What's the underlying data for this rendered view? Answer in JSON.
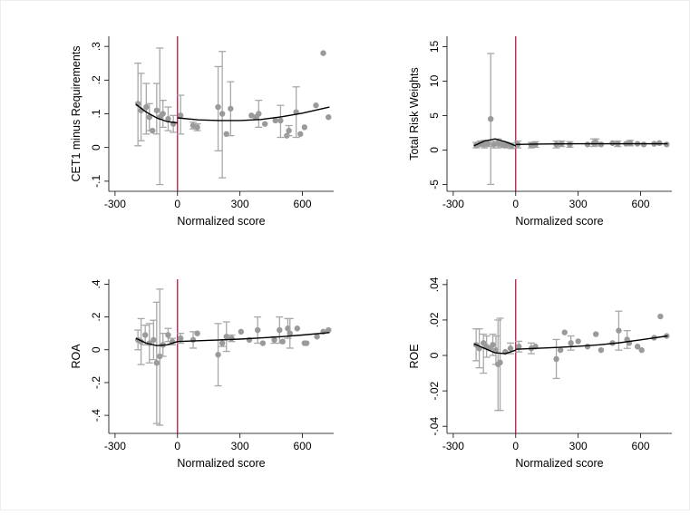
{
  "chart_data": [
    {
      "type": "scatter",
      "xlabel": "Normalized score",
      "ylabel": "CET1 minus Requirements",
      "xticks": [
        -300,
        0,
        300,
        600
      ],
      "xtick_labels": [
        "-300",
        "0",
        "300",
        "600"
      ],
      "yticks": [
        -0.1,
        0,
        0.1,
        0.2,
        0.3
      ],
      "ytick_labels": [
        "-.1",
        "0",
        ".1",
        ".2",
        ".3"
      ],
      "xlim": [
        -330,
        750
      ],
      "ylim": [
        -0.13,
        0.33
      ],
      "threshold": 0,
      "points": [
        {
          "x": -190,
          "y": 0.13,
          "lo": 0.005,
          "hi": 0.25
        },
        {
          "x": -175,
          "y": 0.11,
          "lo": 0.02,
          "hi": 0.22
        },
        {
          "x": -150,
          "y": 0.12,
          "lo": 0.04,
          "hi": 0.19
        },
        {
          "x": -135,
          "y": 0.09,
          "lo": 0.05,
          "hi": 0.13
        },
        {
          "x": -120,
          "y": 0.05
        },
        {
          "x": -100,
          "y": 0.11,
          "lo": 0.04,
          "hi": 0.19
        },
        {
          "x": -85,
          "y": 0.09,
          "lo": -0.11,
          "hi": 0.295
        },
        {
          "x": -70,
          "y": 0.1,
          "lo": 0.06,
          "hi": 0.14
        },
        {
          "x": -45,
          "y": 0.085,
          "lo": 0.05,
          "hi": 0.12
        },
        {
          "x": -20,
          "y": 0.07,
          "lo": 0.045,
          "hi": 0.095
        },
        {
          "x": 15,
          "y": 0.095,
          "lo": 0.04,
          "hi": 0.155
        },
        {
          "x": 75,
          "y": 0.065,
          "lo": 0.055,
          "hi": 0.075
        },
        {
          "x": 95,
          "y": 0.06,
          "lo": 0.05,
          "hi": 0.07
        },
        {
          "x": 195,
          "y": 0.12,
          "lo": -0.01,
          "hi": 0.24
        },
        {
          "x": 215,
          "y": 0.1,
          "lo": -0.09,
          "hi": 0.285
        },
        {
          "x": 235,
          "y": 0.04
        },
        {
          "x": 255,
          "y": 0.115,
          "lo": 0.035,
          "hi": 0.195
        },
        {
          "x": 355,
          "y": 0.095
        },
        {
          "x": 375,
          "y": 0.09
        },
        {
          "x": 390,
          "y": 0.1,
          "lo": 0.06,
          "hi": 0.14
        },
        {
          "x": 420,
          "y": 0.07
        },
        {
          "x": 470,
          "y": 0.08
        },
        {
          "x": 495,
          "y": 0.08,
          "lo": 0.03,
          "hi": 0.125
        },
        {
          "x": 525,
          "y": 0.035
        },
        {
          "x": 535,
          "y": 0.05,
          "lo": 0.035,
          "hi": 0.065
        },
        {
          "x": 570,
          "y": 0.105,
          "lo": 0.03,
          "hi": 0.18
        },
        {
          "x": 590,
          "y": 0.04
        },
        {
          "x": 610,
          "y": 0.06
        },
        {
          "x": 665,
          "y": 0.125
        },
        {
          "x": 700,
          "y": 0.28
        },
        {
          "x": 725,
          "y": 0.09
        }
      ],
      "fit_left": {
        "x": [
          -200,
          -150,
          -100,
          -50,
          0
        ],
        "y": [
          0.128,
          0.105,
          0.088,
          0.077,
          0.073
        ]
      },
      "fit_right": {
        "x": [
          0,
          100,
          200,
          300,
          400,
          500,
          600,
          730
        ],
        "y": [
          0.088,
          0.082,
          0.08,
          0.08,
          0.083,
          0.091,
          0.102,
          0.12
        ]
      }
    },
    {
      "type": "scatter",
      "xlabel": "Normalized score",
      "ylabel": "Total Risk Weights",
      "xticks": [
        -300,
        0,
        300,
        600
      ],
      "xtick_labels": [
        "-300",
        "0",
        "300",
        "600"
      ],
      "yticks": [
        -5,
        0,
        5,
        10,
        15
      ],
      "ytick_labels": [
        "-5",
        "0",
        "5",
        "10",
        "15"
      ],
      "xlim": [
        -330,
        750
      ],
      "ylim": [
        -6,
        16.5
      ],
      "threshold": 0,
      "points": [
        {
          "x": -190,
          "y": 0.7,
          "lo": 0.3,
          "hi": 1.1
        },
        {
          "x": -170,
          "y": 0.9,
          "lo": 0.5,
          "hi": 1.3
        },
        {
          "x": -150,
          "y": 0.8,
          "lo": 0.3,
          "hi": 1.4
        },
        {
          "x": -135,
          "y": 0.9,
          "lo": 0.5,
          "hi": 1.3
        },
        {
          "x": -120,
          "y": 4.5,
          "lo": -5.0,
          "hi": 14.0
        },
        {
          "x": -105,
          "y": 0.8,
          "lo": 0.3,
          "hi": 1.3
        },
        {
          "x": -85,
          "y": 0.9,
          "lo": 0.3,
          "hi": 1.6
        },
        {
          "x": -65,
          "y": 0.8,
          "lo": 0.4,
          "hi": 1.2
        },
        {
          "x": -45,
          "y": 0.7,
          "lo": 0.3,
          "hi": 1.1
        },
        {
          "x": -20,
          "y": 0.6,
          "lo": 0.2,
          "hi": 1.0
        },
        {
          "x": 10,
          "y": 0.8,
          "lo": 0.3,
          "hi": 1.3
        },
        {
          "x": 75,
          "y": 0.7,
          "lo": 0.3,
          "hi": 1.1
        },
        {
          "x": 95,
          "y": 0.8,
          "lo": 0.4,
          "hi": 1.2
        },
        {
          "x": 195,
          "y": 0.8,
          "lo": 0.3,
          "hi": 1.3
        },
        {
          "x": 220,
          "y": 0.9,
          "lo": 0.5,
          "hi": 1.3
        },
        {
          "x": 260,
          "y": 0.8,
          "lo": 0.4,
          "hi": 1.2
        },
        {
          "x": 345,
          "y": 0.8
        },
        {
          "x": 375,
          "y": 1.0,
          "lo": 0.5,
          "hi": 1.6
        },
        {
          "x": 385,
          "y": 1.1,
          "lo": 0.6,
          "hi": 1.6
        },
        {
          "x": 410,
          "y": 0.8
        },
        {
          "x": 465,
          "y": 1.0
        },
        {
          "x": 490,
          "y": 0.9,
          "lo": 0.5,
          "hi": 1.3
        },
        {
          "x": 530,
          "y": 0.9
        },
        {
          "x": 550,
          "y": 1.0,
          "lo": 0.6,
          "hi": 1.4
        },
        {
          "x": 585,
          "y": 0.9
        },
        {
          "x": 615,
          "y": 0.8
        },
        {
          "x": 665,
          "y": 0.9
        },
        {
          "x": 690,
          "y": 1.0
        },
        {
          "x": 725,
          "y": 0.8
        }
      ],
      "fit_left": {
        "x": [
          -200,
          -150,
          -100,
          -50,
          0
        ],
        "y": [
          0.6,
          1.3,
          1.6,
          1.2,
          0.6
        ]
      },
      "fit_right": {
        "x": [
          0,
          100,
          200,
          300,
          400,
          500,
          600,
          730
        ],
        "y": [
          0.8,
          0.85,
          0.88,
          0.9,
          0.9,
          0.9,
          0.9,
          0.9
        ]
      }
    },
    {
      "type": "scatter",
      "xlabel": "Normalized score",
      "ylabel": "ROA",
      "xticks": [
        -300,
        0,
        300,
        600
      ],
      "xtick_labels": [
        "-300",
        "0",
        "300",
        "600"
      ],
      "yticks": [
        -0.4,
        -0.2,
        0,
        0.2,
        0.4
      ],
      "ytick_labels": [
        "-.4",
        "-.2",
        "0",
        ".2",
        ".4"
      ],
      "xlim": [
        -330,
        750
      ],
      "ylim": [
        -0.51,
        0.43
      ],
      "threshold": 0,
      "points": [
        {
          "x": -190,
          "y": 0.06,
          "lo": 0.0,
          "hi": 0.12
        },
        {
          "x": -175,
          "y": 0.05,
          "lo": -0.09,
          "hi": 0.19
        },
        {
          "x": -155,
          "y": 0.09,
          "lo": 0.03,
          "hi": 0.15
        },
        {
          "x": -135,
          "y": 0.04,
          "lo": -0.08,
          "hi": 0.16
        },
        {
          "x": -115,
          "y": 0.06,
          "lo": -0.06,
          "hi": 0.18
        },
        {
          "x": -100,
          "y": -0.08,
          "lo": -0.45,
          "hi": 0.29
        },
        {
          "x": -85,
          "y": -0.04,
          "lo": -0.46,
          "hi": 0.37
        },
        {
          "x": -70,
          "y": 0.03,
          "lo": -0.04,
          "hi": 0.1
        },
        {
          "x": -45,
          "y": 0.09,
          "lo": 0.05,
          "hi": 0.13
        },
        {
          "x": -25,
          "y": 0.05,
          "lo": 0.03,
          "hi": 0.07
        },
        {
          "x": 15,
          "y": 0.07,
          "lo": 0.04,
          "hi": 0.1
        },
        {
          "x": 75,
          "y": 0.06,
          "lo": 0.01,
          "hi": 0.11
        },
        {
          "x": 95,
          "y": 0.1
        },
        {
          "x": 195,
          "y": -0.03,
          "lo": -0.22,
          "hi": 0.16
        },
        {
          "x": 215,
          "y": 0.04,
          "lo": 0.02,
          "hi": 0.06
        },
        {
          "x": 235,
          "y": 0.08,
          "lo": -0.01,
          "hi": 0.17
        },
        {
          "x": 260,
          "y": 0.07,
          "lo": 0.05,
          "hi": 0.09
        },
        {
          "x": 305,
          "y": 0.11
        },
        {
          "x": 345,
          "y": 0.06
        },
        {
          "x": 385,
          "y": 0.12,
          "lo": 0.04,
          "hi": 0.2
        },
        {
          "x": 410,
          "y": 0.04
        },
        {
          "x": 465,
          "y": 0.06,
          "lo": 0.04,
          "hi": 0.08
        },
        {
          "x": 490,
          "y": 0.12,
          "lo": 0.04,
          "hi": 0.2
        },
        {
          "x": 505,
          "y": 0.05
        },
        {
          "x": 530,
          "y": 0.13,
          "lo": 0.07,
          "hi": 0.19
        },
        {
          "x": 540,
          "y": 0.1,
          "lo": 0.01,
          "hi": 0.19
        },
        {
          "x": 575,
          "y": 0.13
        },
        {
          "x": 610,
          "y": 0.04
        },
        {
          "x": 620,
          "y": 0.04
        },
        {
          "x": 670,
          "y": 0.08
        },
        {
          "x": 700,
          "y": 0.11
        },
        {
          "x": 725,
          "y": 0.12
        }
      ],
      "fit_left": {
        "x": [
          -200,
          -150,
          -100,
          -50,
          0
        ],
        "y": [
          0.07,
          0.04,
          0.025,
          0.03,
          0.05
        ]
      },
      "fit_right": {
        "x": [
          0,
          100,
          200,
          300,
          400,
          500,
          600,
          730
        ],
        "y": [
          0.05,
          0.055,
          0.06,
          0.065,
          0.072,
          0.08,
          0.09,
          0.105
        ]
      }
    },
    {
      "type": "scatter",
      "xlabel": "Normalized score",
      "ylabel": "ROE",
      "xticks": [
        -300,
        0,
        300,
        600
      ],
      "xtick_labels": [
        "-300",
        "0",
        "300",
        "600"
      ],
      "yticks": [
        -0.04,
        -0.02,
        0,
        0.02,
        0.04
      ],
      "ytick_labels": [
        "-.04",
        "-.02",
        "0",
        ".02",
        ".04"
      ],
      "xlim": [
        -330,
        750
      ],
      "ylim": [
        -0.044,
        0.043
      ],
      "threshold": 0,
      "points": [
        {
          "x": -190,
          "y": 0.006,
          "lo": -0.003,
          "hi": 0.015
        },
        {
          "x": -175,
          "y": 0.004,
          "lo": -0.007,
          "hi": 0.015
        },
        {
          "x": -155,
          "y": 0.007,
          "lo": -0.01,
          "hi": 0.012
        },
        {
          "x": -140,
          "y": 0.005,
          "lo": -0.001,
          "hi": 0.011
        },
        {
          "x": -125,
          "y": 0.004
        },
        {
          "x": -110,
          "y": 0.006,
          "lo": 0.0,
          "hi": 0.012
        },
        {
          "x": -95,
          "y": 0.003,
          "lo": -0.005,
          "hi": 0.011
        },
        {
          "x": -85,
          "y": -0.005,
          "lo": -0.031,
          "hi": 0.02
        },
        {
          "x": -75,
          "y": -0.004,
          "lo": -0.031,
          "hi": 0.021
        },
        {
          "x": -50,
          "y": 0.002
        },
        {
          "x": -25,
          "y": 0.004,
          "lo": 0.001,
          "hi": 0.007
        },
        {
          "x": 15,
          "y": 0.005,
          "lo": 0.002,
          "hi": 0.008
        },
        {
          "x": 75,
          "y": 0.004,
          "lo": 0.001,
          "hi": 0.007
        },
        {
          "x": 95,
          "y": 0.005
        },
        {
          "x": 195,
          "y": -0.002,
          "lo": -0.013,
          "hi": 0.009
        },
        {
          "x": 215,
          "y": 0.003
        },
        {
          "x": 235,
          "y": 0.013
        },
        {
          "x": 265,
          "y": 0.007,
          "lo": 0.003,
          "hi": 0.011
        },
        {
          "x": 300,
          "y": 0.008
        },
        {
          "x": 345,
          "y": 0.005
        },
        {
          "x": 385,
          "y": 0.012
        },
        {
          "x": 410,
          "y": 0.003
        },
        {
          "x": 465,
          "y": 0.007
        },
        {
          "x": 495,
          "y": 0.014,
          "lo": 0.003,
          "hi": 0.025
        },
        {
          "x": 535,
          "y": 0.009,
          "lo": 0.004,
          "hi": 0.014
        },
        {
          "x": 545,
          "y": 0.007
        },
        {
          "x": 585,
          "y": 0.005
        },
        {
          "x": 605,
          "y": 0.003
        },
        {
          "x": 665,
          "y": 0.01
        },
        {
          "x": 695,
          "y": 0.022
        },
        {
          "x": 725,
          "y": 0.011
        }
      ],
      "fit_left": {
        "x": [
          -200,
          -150,
          -100,
          -50,
          0
        ],
        "y": [
          0.0065,
          0.004,
          0.0015,
          0.001,
          0.003
        ]
      },
      "fit_right": {
        "x": [
          0,
          100,
          200,
          300,
          400,
          500,
          600,
          730
        ],
        "y": [
          0.0035,
          0.004,
          0.0045,
          0.0052,
          0.006,
          0.0072,
          0.0088,
          0.011
        ]
      }
    }
  ]
}
